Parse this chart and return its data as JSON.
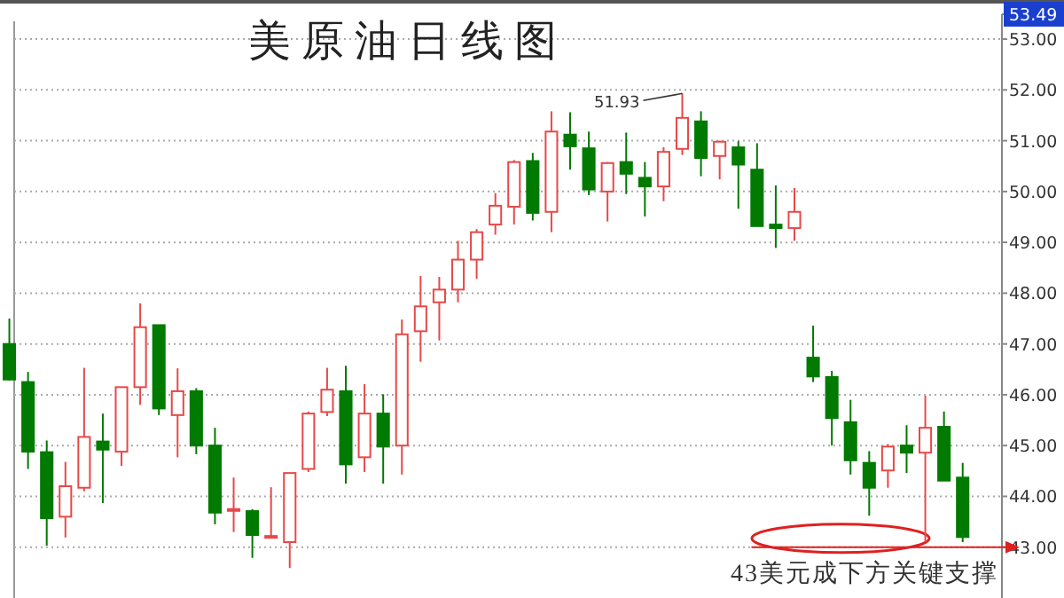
{
  "chart_data": {
    "type": "candlestick",
    "title": "美原油日线图",
    "categories": [
      null,
      null,
      null,
      null,
      null,
      null,
      null,
      null,
      null,
      null,
      null,
      null,
      null,
      null,
      null,
      null,
      null,
      null,
      null,
      null,
      null,
      null,
      null,
      null,
      null,
      null,
      null,
      null,
      null,
      null,
      null,
      null,
      null,
      null,
      null,
      null,
      null,
      null,
      null,
      null,
      null,
      null,
      null,
      null,
      null,
      null,
      null,
      null,
      null,
      null,
      null,
      null
    ],
    "ohlc": [
      [
        47.0,
        47.5,
        46.28,
        46.3
      ],
      [
        46.25,
        46.45,
        44.54,
        44.88
      ],
      [
        44.87,
        45.1,
        43.03,
        43.57
      ],
      [
        43.6,
        44.68,
        43.19,
        44.2
      ],
      [
        44.17,
        46.53,
        44.1,
        45.17
      ],
      [
        45.08,
        45.63,
        43.87,
        44.92
      ],
      [
        44.88,
        46.15,
        44.6,
        46.15
      ],
      [
        46.15,
        47.8,
        45.8,
        47.33
      ],
      [
        47.37,
        47.37,
        45.6,
        45.73
      ],
      [
        45.6,
        46.52,
        44.77,
        46.07
      ],
      [
        46.07,
        46.13,
        44.83,
        45.0
      ],
      [
        45.0,
        45.35,
        43.45,
        43.68
      ],
      [
        43.72,
        44.37,
        43.3,
        43.75
      ],
      [
        43.71,
        43.75,
        42.79,
        43.24
      ],
      [
        43.19,
        44.18,
        43.18,
        43.22
      ],
      [
        43.1,
        44.46,
        42.59,
        44.46
      ],
      [
        44.54,
        45.67,
        44.48,
        45.63
      ],
      [
        45.66,
        46.53,
        45.58,
        46.1
      ],
      [
        46.07,
        46.57,
        44.25,
        44.63
      ],
      [
        44.77,
        46.21,
        44.48,
        45.63
      ],
      [
        45.63,
        46.01,
        44.25,
        44.98
      ],
      [
        45.0,
        47.48,
        44.43,
        47.19
      ],
      [
        47.25,
        48.34,
        46.65,
        47.74
      ],
      [
        47.82,
        48.32,
        47.07,
        48.07
      ],
      [
        48.07,
        49.03,
        47.82,
        48.66
      ],
      [
        48.66,
        49.26,
        48.28,
        49.2
      ],
      [
        49.35,
        49.97,
        49.15,
        49.72
      ],
      [
        49.7,
        50.62,
        49.35,
        50.58
      ],
      [
        50.6,
        50.76,
        49.43,
        49.58
      ],
      [
        49.6,
        51.58,
        49.2,
        51.18
      ],
      [
        51.12,
        51.56,
        50.43,
        50.89
      ],
      [
        50.85,
        51.18,
        49.93,
        50.04
      ],
      [
        50.0,
        50.58,
        49.41,
        50.56
      ],
      [
        50.58,
        51.16,
        49.95,
        50.35
      ],
      [
        50.27,
        50.58,
        49.51,
        50.1
      ],
      [
        50.1,
        50.87,
        49.81,
        50.78
      ],
      [
        50.84,
        51.93,
        50.72,
        51.45
      ],
      [
        51.38,
        51.58,
        50.3,
        50.66
      ],
      [
        50.7,
        51.0,
        50.24,
        50.98
      ],
      [
        50.87,
        50.99,
        49.66,
        50.53
      ],
      [
        50.43,
        50.95,
        49.32,
        49.32
      ],
      [
        49.35,
        50.12,
        48.89,
        49.28
      ],
      [
        49.28,
        50.07,
        49.03,
        49.6
      ],
      [
        46.73,
        47.36,
        46.25,
        46.36
      ],
      [
        46.35,
        46.47,
        45.0,
        45.54
      ],
      [
        45.46,
        45.9,
        44.43,
        44.71
      ],
      [
        44.66,
        44.89,
        43.62,
        44.17
      ],
      [
        44.51,
        45.03,
        44.17,
        44.98
      ],
      [
        45.0,
        45.4,
        44.46,
        44.86
      ],
      [
        44.86,
        45.98,
        43.1,
        45.35
      ],
      [
        45.37,
        45.67,
        44.31,
        44.31
      ],
      [
        44.37,
        44.66,
        43.1,
        43.2
      ]
    ],
    "ylim": [
      42.0,
      53.49
    ],
    "yticks": [
      {
        "value": 43,
        "label": "43.00"
      },
      {
        "value": 44,
        "label": "44.00"
      },
      {
        "value": 45,
        "label": "45.00"
      },
      {
        "value": 46,
        "label": "46.00"
      },
      {
        "value": 47,
        "label": "47.00"
      },
      {
        "value": 48,
        "label": "48.00"
      },
      {
        "value": 49,
        "label": "49.00"
      },
      {
        "value": 50,
        "label": "50.00"
      },
      {
        "value": 51,
        "label": "51.00"
      },
      {
        "value": 52,
        "label": "52.00"
      },
      {
        "value": 53,
        "label": "53.00"
      },
      {
        "value": 53.49,
        "label": "53.49"
      }
    ],
    "grid": "y",
    "ref_lines": [
      {
        "axis": "y",
        "value": 43,
        "label": "43美元成下方关键支撑",
        "color": "#e02020"
      }
    ],
    "annotations": [
      "51.93"
    ]
  }
}
